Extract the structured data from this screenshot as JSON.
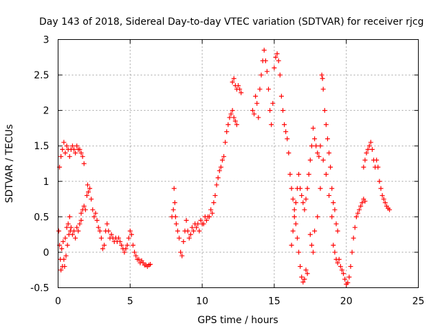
{
  "chart_data": {
    "type": "scatter",
    "title": "Day 143 of 2018, Sidereal Day-to-day VTEC variation (SDTVAR) for receiver rjcg",
    "xlabel": "GPS time / hours",
    "ylabel": "SDTVAR / TECUs",
    "xlim": [
      0,
      25
    ],
    "ylim": [
      -0.5,
      3
    ],
    "xticks": [
      "0",
      "5",
      "10",
      "15",
      "20",
      "25"
    ],
    "yticks": [
      "-0.5",
      "0",
      "0.5",
      "1",
      "1.5",
      "2",
      "2.5",
      "3"
    ],
    "grid": true,
    "marker": "+",
    "color": "#ff0000",
    "series": [
      {
        "name": "",
        "points": [
          [
            0.05,
            0.3
          ],
          [
            0.1,
            0.1
          ],
          [
            0.15,
            -0.1
          ],
          [
            0.2,
            -0.25
          ],
          [
            0.25,
            0.05
          ],
          [
            0.3,
            -0.2
          ],
          [
            0.35,
            0.15
          ],
          [
            0.4,
            -0.1
          ],
          [
            0.45,
            -0.2
          ],
          [
            0.5,
            0.2
          ],
          [
            0.55,
            -0.05
          ],
          [
            0.6,
            0.35
          ],
          [
            0.65,
            0.1
          ],
          [
            0.7,
            0.4
          ],
          [
            0.75,
            0.25
          ],
          [
            0.8,
            0.5
          ],
          [
            0.85,
            0.3
          ],
          [
            0.9,
            0.35
          ],
          [
            1.0,
            0.25
          ],
          [
            1.1,
            0.3
          ],
          [
            1.2,
            0.2
          ],
          [
            1.3,
            0.35
          ],
          [
            1.4,
            0.3
          ],
          [
            1.5,
            0.4
          ],
          [
            1.6,
            0.45
          ],
          [
            0.1,
            1.2
          ],
          [
            0.2,
            1.35
          ],
          [
            0.3,
            1.45
          ],
          [
            0.4,
            1.55
          ],
          [
            0.5,
            1.4
          ],
          [
            0.6,
            1.5
          ],
          [
            0.7,
            1.45
          ],
          [
            0.8,
            1.35
          ],
          [
            0.9,
            1.45
          ],
          [
            1.0,
            1.5
          ],
          [
            1.1,
            1.45
          ],
          [
            1.2,
            1.4
          ],
          [
            1.3,
            1.5
          ],
          [
            1.4,
            1.45
          ],
          [
            1.5,
            1.45
          ],
          [
            1.6,
            1.4
          ],
          [
            1.7,
            1.35
          ],
          [
            1.8,
            1.25
          ],
          [
            1.6,
            0.55
          ],
          [
            1.7,
            0.6
          ],
          [
            1.8,
            0.65
          ],
          [
            1.9,
            0.6
          ],
          [
            2.0,
            0.8
          ],
          [
            2.05,
            0.95
          ],
          [
            2.1,
            0.85
          ],
          [
            2.2,
            0.9
          ],
          [
            2.3,
            0.75
          ],
          [
            2.4,
            0.6
          ],
          [
            2.5,
            0.5
          ],
          [
            2.6,
            0.55
          ],
          [
            2.7,
            0.45
          ],
          [
            2.8,
            0.35
          ],
          [
            2.9,
            0.3
          ],
          [
            3.0,
            0.2
          ],
          [
            3.1,
            0.05
          ],
          [
            3.2,
            0.1
          ],
          [
            3.3,
            0.3
          ],
          [
            3.4,
            0.4
          ],
          [
            3.5,
            0.3
          ],
          [
            3.6,
            0.2
          ],
          [
            3.7,
            0.25
          ],
          [
            3.8,
            0.2
          ],
          [
            3.9,
            0.15
          ],
          [
            4.0,
            0.2
          ],
          [
            4.1,
            0.15
          ],
          [
            4.2,
            0.2
          ],
          [
            4.3,
            0.15
          ],
          [
            4.4,
            0.1
          ],
          [
            4.5,
            0.05
          ],
          [
            4.6,
            0.0
          ],
          [
            4.7,
            0.05
          ],
          [
            4.8,
            0.1
          ],
          [
            4.9,
            0.2
          ],
          [
            5.0,
            0.3
          ],
          [
            5.1,
            0.25
          ],
          [
            5.2,
            0.1
          ],
          [
            5.3,
            0.0
          ],
          [
            5.4,
            -0.05
          ],
          [
            5.5,
            -0.1
          ],
          [
            5.6,
            -0.1
          ],
          [
            5.7,
            -0.15
          ],
          [
            5.8,
            -0.12
          ],
          [
            5.9,
            -0.15
          ],
          [
            6.0,
            -0.18
          ],
          [
            6.1,
            -0.18
          ],
          [
            6.2,
            -0.2
          ],
          [
            6.3,
            -0.18
          ],
          [
            6.4,
            -0.17
          ],
          [
            7.9,
            0.5
          ],
          [
            8.0,
            0.6
          ],
          [
            8.05,
            0.9
          ],
          [
            8.1,
            0.7
          ],
          [
            8.15,
            0.5
          ],
          [
            8.2,
            0.4
          ],
          [
            8.3,
            0.3
          ],
          [
            8.4,
            0.2
          ],
          [
            8.5,
            0.0
          ],
          [
            8.6,
            -0.05
          ],
          [
            8.7,
            0.15
          ],
          [
            8.8,
            0.3
          ],
          [
            8.9,
            0.45
          ],
          [
            9.0,
            0.3
          ],
          [
            9.1,
            0.2
          ],
          [
            9.2,
            0.25
          ],
          [
            9.3,
            0.35
          ],
          [
            9.4,
            0.3
          ],
          [
            9.5,
            0.4
          ],
          [
            9.6,
            0.35
          ],
          [
            9.7,
            0.4
          ],
          [
            9.8,
            0.3
          ],
          [
            9.9,
            0.45
          ],
          [
            10.0,
            0.4
          ],
          [
            10.1,
            0.4
          ],
          [
            10.2,
            0.5
          ],
          [
            10.3,
            0.45
          ],
          [
            10.4,
            0.5
          ],
          [
            10.5,
            0.5
          ],
          [
            10.6,
            0.6
          ],
          [
            10.7,
            0.55
          ],
          [
            10.8,
            0.7
          ],
          [
            10.9,
            0.8
          ],
          [
            11.0,
            0.95
          ],
          [
            11.1,
            1.05
          ],
          [
            11.2,
            1.15
          ],
          [
            11.3,
            1.2
          ],
          [
            11.4,
            1.3
          ],
          [
            11.5,
            1.35
          ],
          [
            11.6,
            1.55
          ],
          [
            11.7,
            1.7
          ],
          [
            11.8,
            1.8
          ],
          [
            11.9,
            1.9
          ],
          [
            12.0,
            1.95
          ],
          [
            12.1,
            2.0
          ],
          [
            12.2,
            1.9
          ],
          [
            12.3,
            1.85
          ],
          [
            12.4,
            1.8
          ],
          [
            12.1,
            2.4
          ],
          [
            12.2,
            2.45
          ],
          [
            12.3,
            2.35
          ],
          [
            12.4,
            2.3
          ],
          [
            12.5,
            2.35
          ],
          [
            12.6,
            2.3
          ],
          [
            12.7,
            2.25
          ],
          [
            13.5,
            2.0
          ],
          [
            13.6,
            1.95
          ],
          [
            13.7,
            2.2
          ],
          [
            13.8,
            2.1
          ],
          [
            13.9,
            1.9
          ],
          [
            14.0,
            2.3
          ],
          [
            14.1,
            2.5
          ],
          [
            14.2,
            2.7
          ],
          [
            14.3,
            2.85
          ],
          [
            14.4,
            2.7
          ],
          [
            14.5,
            2.55
          ],
          [
            14.6,
            2.3
          ],
          [
            14.7,
            2.0
          ],
          [
            14.8,
            1.8
          ],
          [
            14.9,
            2.1
          ],
          [
            15.0,
            2.6
          ],
          [
            15.1,
            2.75
          ],
          [
            15.2,
            2.8
          ],
          [
            15.3,
            2.7
          ],
          [
            15.4,
            2.5
          ],
          [
            15.5,
            2.2
          ],
          [
            15.6,
            2.0
          ],
          [
            15.7,
            1.8
          ],
          [
            15.8,
            1.7
          ],
          [
            15.9,
            1.6
          ],
          [
            16.0,
            1.4
          ],
          [
            16.1,
            1.1
          ],
          [
            16.2,
            0.9
          ],
          [
            16.3,
            0.75
          ],
          [
            16.4,
            0.6
          ],
          [
            16.5,
            0.4
          ],
          [
            16.6,
            0.2
          ],
          [
            16.7,
            0.0
          ],
          [
            16.8,
            -0.2
          ],
          [
            16.9,
            -0.35
          ],
          [
            17.0,
            -0.42
          ],
          [
            17.1,
            -0.38
          ],
          [
            17.2,
            -0.25
          ],
          [
            17.3,
            -0.3
          ],
          [
            16.2,
            0.1
          ],
          [
            16.3,
            0.3
          ],
          [
            16.4,
            0.5
          ],
          [
            16.5,
            0.7
          ],
          [
            16.6,
            0.9
          ],
          [
            16.7,
            1.1
          ],
          [
            16.8,
            0.9
          ],
          [
            16.9,
            0.8
          ],
          [
            17.0,
            0.7
          ],
          [
            17.1,
            0.6
          ],
          [
            17.2,
            0.75
          ],
          [
            17.3,
            0.9
          ],
          [
            17.4,
            1.1
          ],
          [
            17.5,
            1.3
          ],
          [
            17.6,
            1.5
          ],
          [
            17.7,
            1.75
          ],
          [
            17.8,
            1.6
          ],
          [
            17.9,
            1.5
          ],
          [
            18.0,
            1.4
          ],
          [
            18.1,
            1.35
          ],
          [
            18.2,
            1.5
          ],
          [
            18.3,
            2.5
          ],
          [
            18.35,
            2.45
          ],
          [
            18.4,
            2.3
          ],
          [
            18.5,
            2.0
          ],
          [
            18.6,
            1.8
          ],
          [
            18.7,
            1.6
          ],
          [
            18.8,
            1.4
          ],
          [
            18.9,
            1.2
          ],
          [
            19.0,
            0.9
          ],
          [
            19.1,
            0.7
          ],
          [
            19.2,
            0.6
          ],
          [
            19.3,
            0.4
          ],
          [
            19.4,
            0.3
          ],
          [
            17.5,
            0.25
          ],
          [
            17.6,
            0.1
          ],
          [
            17.7,
            0.0
          ],
          [
            17.8,
            0.3
          ],
          [
            18.0,
            0.5
          ],
          [
            18.2,
            0.9
          ],
          [
            18.4,
            1.3
          ],
          [
            18.6,
            1.1
          ],
          [
            18.8,
            0.8
          ],
          [
            19.0,
            0.5
          ],
          [
            19.1,
            0.1
          ],
          [
            19.2,
            0.0
          ],
          [
            19.3,
            -0.1
          ],
          [
            19.4,
            -0.15
          ],
          [
            19.5,
            -0.1
          ],
          [
            19.6,
            -0.2
          ],
          [
            19.7,
            -0.25
          ],
          [
            19.8,
            -0.3
          ],
          [
            19.9,
            -0.38
          ],
          [
            20.0,
            -0.45
          ],
          [
            20.1,
            -0.43
          ],
          [
            20.2,
            -0.35
          ],
          [
            20.3,
            -0.2
          ],
          [
            20.4,
            0.0
          ],
          [
            20.5,
            0.2
          ],
          [
            20.6,
            0.35
          ],
          [
            20.7,
            0.5
          ],
          [
            20.8,
            0.55
          ],
          [
            20.9,
            0.6
          ],
          [
            21.0,
            0.65
          ],
          [
            21.1,
            0.7
          ],
          [
            21.2,
            0.75
          ],
          [
            21.3,
            0.72
          ],
          [
            21.2,
            1.2
          ],
          [
            21.3,
            1.3
          ],
          [
            21.4,
            1.4
          ],
          [
            21.5,
            1.45
          ],
          [
            21.6,
            1.5
          ],
          [
            21.7,
            1.55
          ],
          [
            21.8,
            1.45
          ],
          [
            21.9,
            1.3
          ],
          [
            22.0,
            1.2
          ],
          [
            22.1,
            1.3
          ],
          [
            22.2,
            1.2
          ],
          [
            22.3,
            1.0
          ],
          [
            22.4,
            0.9
          ],
          [
            22.5,
            0.8
          ],
          [
            22.6,
            0.75
          ],
          [
            22.7,
            0.7
          ],
          [
            22.8,
            0.65
          ],
          [
            22.9,
            0.62
          ],
          [
            23.0,
            0.6
          ]
        ]
      }
    ]
  }
}
